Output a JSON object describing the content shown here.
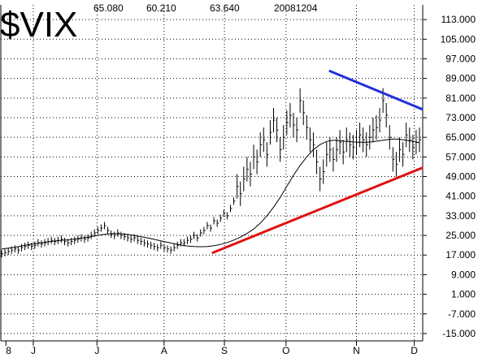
{
  "header": {
    "symbol": "$VIX",
    "values": [
      "65.080",
      "60.210",
      "63.640",
      "20081204"
    ]
  },
  "chart_data": {
    "type": "line",
    "title": "$VIX",
    "xlabel": "",
    "ylabel": "",
    "ylim": [
      -18,
      119
    ],
    "yticks": [
      "113.000",
      "105.000",
      "97.000",
      "89.000",
      "81.000",
      "73.000",
      "65.000",
      "57.000",
      "49.000",
      "41.000",
      "33.000",
      "25.000",
      "17.000",
      "9.000",
      "1.000",
      "-7.000",
      "-15.000"
    ],
    "xticks": [
      "8",
      "J",
      "J",
      "A",
      "S",
      "O",
      "N",
      "D"
    ],
    "grid": true,
    "series": [
      {
        "kind": "ohlc-bars",
        "values": [
          17.5,
          18,
          18.5,
          19,
          19.5,
          19,
          20,
          20.5,
          21,
          20.5,
          21,
          22,
          21.5,
          22,
          22.5,
          23,
          22.5,
          23,
          23.5,
          22.5,
          22,
          22.5,
          23,
          23.5,
          24,
          23.5,
          24,
          25,
          26,
          27,
          28,
          29,
          27,
          25.5,
          25,
          26,
          25,
          24.5,
          24,
          23.5,
          24,
          23,
          22.5,
          22,
          21.5,
          21,
          20.5,
          20,
          21,
          20,
          19.5,
          19,
          20,
          21,
          22,
          22,
          23,
          23.5,
          25,
          24,
          26,
          27,
          29,
          28,
          31,
          30,
          32,
          34,
          33,
          36,
          39,
          45,
          42,
          48,
          52,
          50,
          57,
          55,
          62,
          64,
          58,
          67,
          72,
          68,
          60,
          65,
          71,
          74,
          70,
          68,
          80,
          75,
          69,
          64,
          62,
          55,
          48,
          51,
          58,
          60,
          56,
          60,
          63,
          59,
          64,
          62,
          61,
          63,
          66,
          64,
          62,
          65,
          68,
          69,
          72,
          80,
          74,
          65,
          56,
          54,
          60,
          58,
          66,
          64,
          61,
          63,
          64
        ]
      },
      {
        "kind": "moving-average",
        "values": [
          19.5,
          19.8,
          20.2,
          20.7,
          21.2,
          21.6,
          22,
          22.4,
          22.7,
          23,
          23.2,
          23.5,
          23.9,
          24.3,
          24.8,
          25.3,
          25.6,
          25.7,
          25.6,
          25.4,
          25,
          24.5,
          24,
          23.4,
          22.8,
          22.2,
          21.6,
          21.1,
          20.7,
          20.5,
          20.4,
          20.5,
          20.8,
          21.3,
          22.1,
          23.1,
          24.3,
          25.8,
          27.6,
          30,
          33,
          36.5,
          40.5,
          45,
          49.5,
          53.5,
          57,
          60,
          62,
          63.3,
          63.8,
          63.6,
          63.3,
          63.1,
          63,
          63,
          63.2,
          63.6,
          64,
          64.3,
          64.2,
          63.8,
          63.3,
          62.8
        ]
      }
    ],
    "trendlines": [
      {
        "name": "lower-support",
        "color": "#e01010",
        "points": [
          [
            0,
            18
          ],
          [
            1,
            52.5
          ]
        ]
      },
      {
        "name": "upper-resistance",
        "color": "#2030d8",
        "points": [
          [
            0,
            92
          ],
          [
            1,
            76.5
          ]
        ]
      }
    ],
    "colors": {
      "price": "#000000",
      "moving_average": "#000000",
      "support": "#e01010",
      "resistance": "#2030d8"
    }
  }
}
